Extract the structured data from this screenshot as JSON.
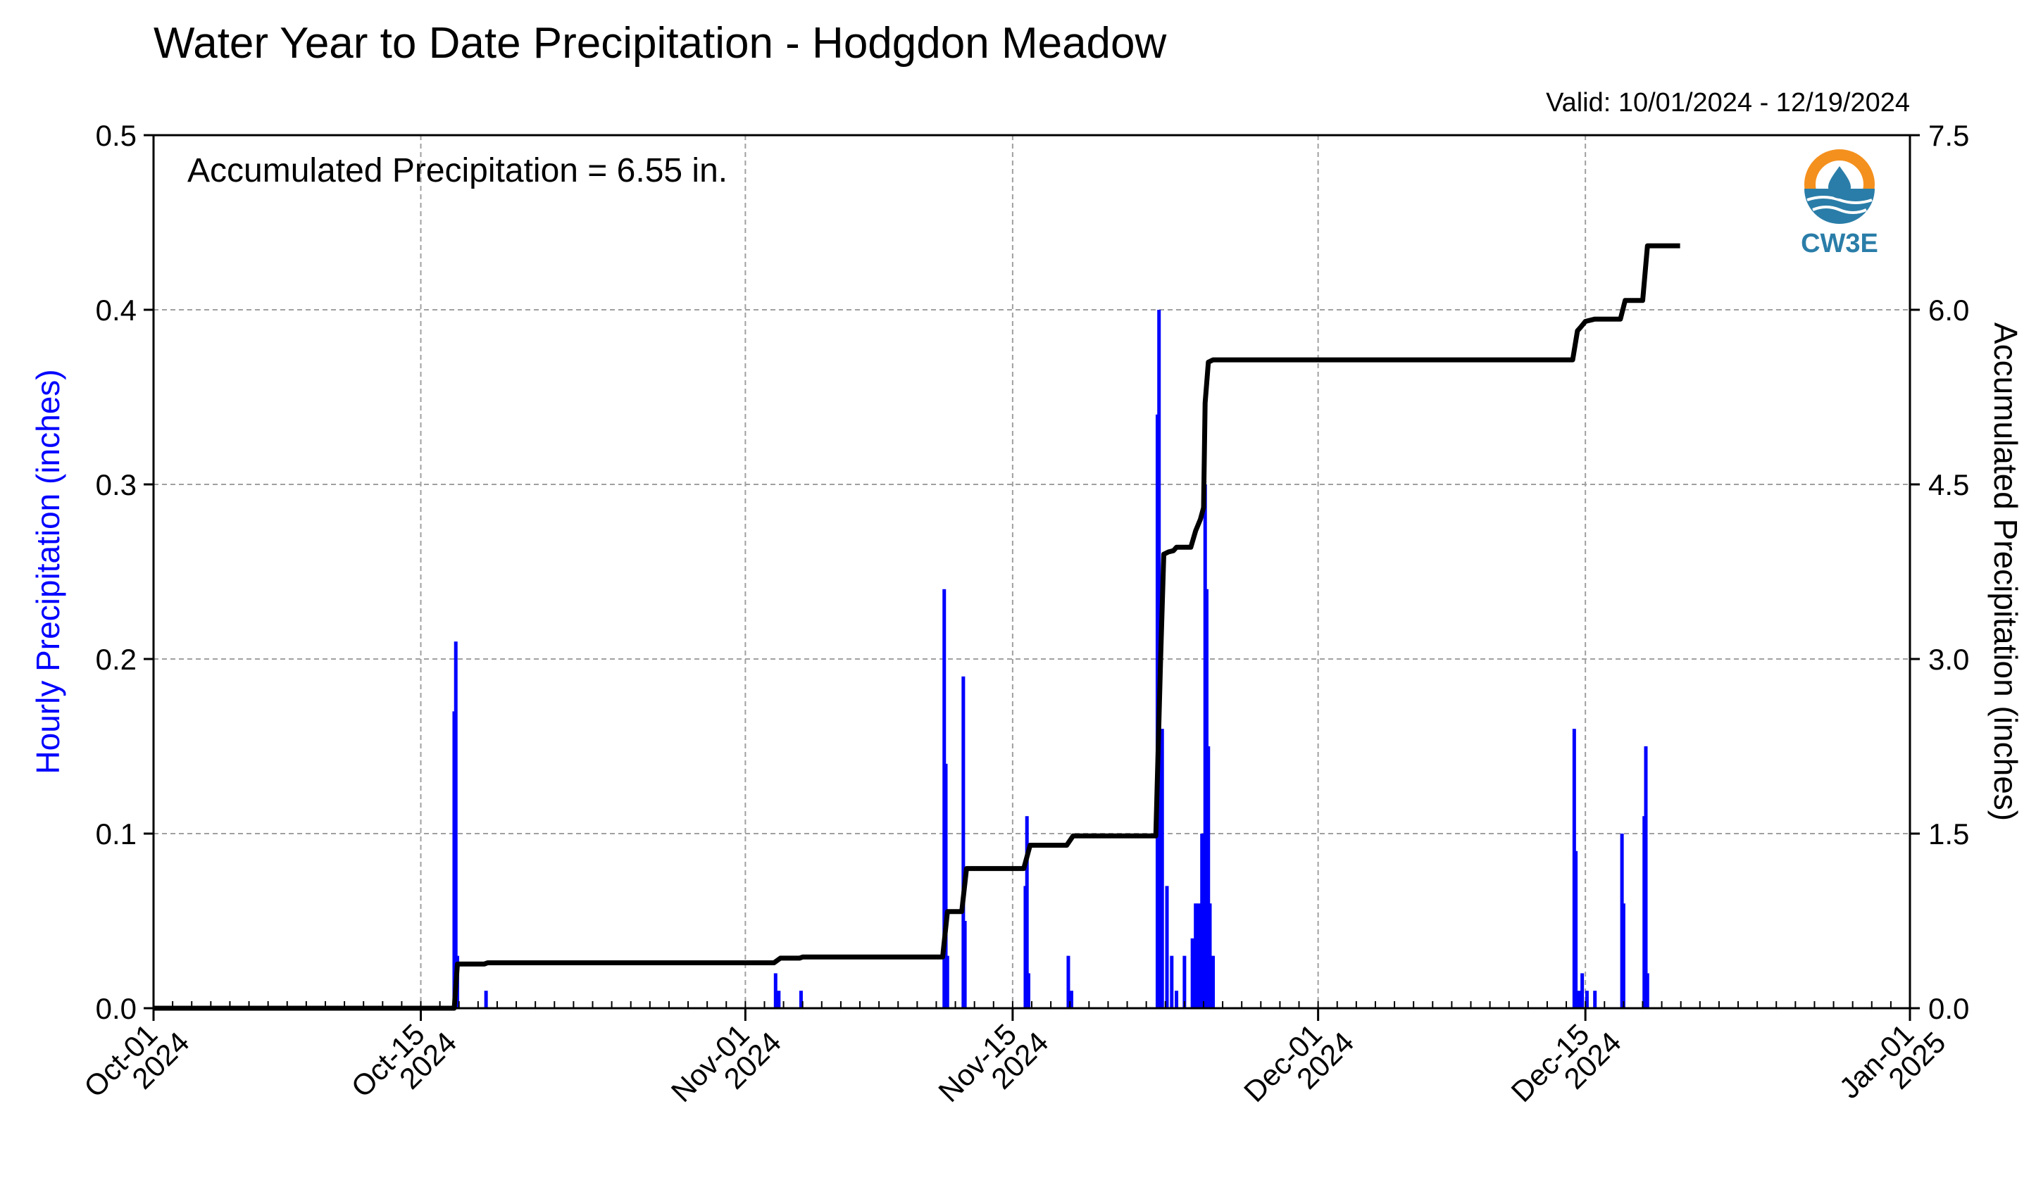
{
  "chart_data": {
    "type": "bar+line",
    "title": "Water Year to Date Precipitation - Hodgdon Meadow",
    "subtitle": "Valid: 10/01/2024 - 12/19/2024",
    "annotation": "Accumulated Precipitation = 6.55 in.",
    "logo_text": "CW3E",
    "x_axis": {
      "range": [
        "2024-10-01",
        "2025-01-01"
      ],
      "ticks": [
        {
          "date": "2024-10-01",
          "line1": "Oct-01",
          "line2": "2024"
        },
        {
          "date": "2024-10-15",
          "line1": "Oct-15",
          "line2": "2024"
        },
        {
          "date": "2024-11-01",
          "line1": "Nov-01",
          "line2": "2024"
        },
        {
          "date": "2024-11-15",
          "line1": "Nov-15",
          "line2": "2024"
        },
        {
          "date": "2024-12-01",
          "line1": "Dec-01",
          "line2": "2024"
        },
        {
          "date": "2024-12-15",
          "line1": "Dec-15",
          "line2": "2024"
        },
        {
          "date": "2025-01-01",
          "line1": "Jan-01",
          "line2": "2025"
        }
      ],
      "minor_ticks": "daily"
    },
    "y_left": {
      "label": "Hourly Precipitation (inches)",
      "color": "#0000ff",
      "range": [
        0,
        0.5
      ],
      "ticks": [
        "0.0",
        "0.1",
        "0.2",
        "0.3",
        "0.4",
        "0.5"
      ]
    },
    "y_right": {
      "label": "Accumulated Precipitation (inches)",
      "range": [
        0,
        7.5
      ],
      "ticks": [
        "0.0",
        "1.5",
        "3.0",
        "4.5",
        "6.0",
        "7.5"
      ]
    },
    "grid": true,
    "series": [
      {
        "type": "bar",
        "axis": "left",
        "color": "#0000ff",
        "x": [
          "2024-10-16T18:00",
          "2024-10-16T20:00",
          "2024-10-16T22:00",
          "2024-10-18T10:00",
          "2024-11-02T14:00",
          "2024-11-02T18:00",
          "2024-11-03T22:00",
          "2024-11-11T10:00",
          "2024-11-11T12:00",
          "2024-11-11T14:00",
          "2024-11-12T10:00",
          "2024-11-12T12:00",
          "2024-11-15T16:00",
          "2024-11-15T18:00",
          "2024-11-15T20:00",
          "2024-11-17T22:00",
          "2024-11-18T02:00",
          "2024-11-22T14:00",
          "2024-11-22T16:00",
          "2024-11-22T20:00",
          "2024-11-23T02:00",
          "2024-11-23T08:00",
          "2024-11-23T14:00",
          "2024-11-24T00:00",
          "2024-11-24T10:00",
          "2024-11-24T14:00",
          "2024-11-24T18:00",
          "2024-11-24T22:00",
          "2024-11-25T02:00",
          "2024-11-25T04:00",
          "2024-11-25T06:00",
          "2024-11-25T08:00",
          "2024-11-25T12:00",
          "2024-12-14T10:00",
          "2024-12-14T12:00",
          "2024-12-14T16:00",
          "2024-12-14T20:00",
          "2024-12-15T02:00",
          "2024-12-15T12:00",
          "2024-12-16T22:00",
          "2024-12-17T00:00",
          "2024-12-18T02:00",
          "2024-12-18T04:00",
          "2024-12-18T06:00"
        ],
        "values": [
          0.17,
          0.21,
          0.03,
          0.01,
          0.02,
          0.01,
          0.01,
          0.24,
          0.14,
          0.03,
          0.19,
          0.05,
          0.07,
          0.11,
          0.02,
          0.03,
          0.01,
          0.34,
          0.4,
          0.16,
          0.07,
          0.03,
          0.01,
          0.03,
          0.04,
          0.06,
          0.06,
          0.1,
          0.3,
          0.24,
          0.15,
          0.06,
          0.03,
          0.16,
          0.09,
          0.01,
          0.02,
          0.01,
          0.01,
          0.1,
          0.06,
          0.11,
          0.15,
          0.02
        ]
      },
      {
        "type": "line",
        "axis": "right",
        "color": "#000000",
        "x": [
          "2024-10-01T00:00",
          "2024-10-16T18:00",
          "2024-10-16T22:00",
          "2024-10-18T08:00",
          "2024-10-18T12:00",
          "2024-11-02T12:00",
          "2024-11-02T20:00",
          "2024-11-03T20:00",
          "2024-11-04T00:00",
          "2024-11-11T08:00",
          "2024-11-11T14:00",
          "2024-11-12T08:00",
          "2024-11-12T14:00",
          "2024-11-15T14:00",
          "2024-11-15T22:00",
          "2024-11-17T20:00",
          "2024-11-18T04:00",
          "2024-11-22T12:00",
          "2024-11-22T18:00",
          "2024-11-22T22:00",
          "2024-11-23T04:00",
          "2024-11-23T10:00",
          "2024-11-23T14:00",
          "2024-11-24T08:00",
          "2024-11-24T14:00",
          "2024-11-24T20:00",
          "2024-11-25T00:00",
          "2024-11-25T02:00",
          "2024-11-25T06:00",
          "2024-11-25T12:00",
          "2024-12-14T08:00",
          "2024-12-14T14:00",
          "2024-12-14T18:00",
          "2024-12-15T00:00",
          "2024-12-15T12:00",
          "2024-12-16T20:00",
          "2024-12-17T02:00",
          "2024-12-18T00:00",
          "2024-12-18T06:00",
          "2024-12-19T23:00"
        ],
        "values": [
          0.0,
          0.0,
          0.38,
          0.38,
          0.39,
          0.39,
          0.43,
          0.43,
          0.44,
          0.44,
          0.83,
          0.83,
          1.2,
          1.2,
          1.4,
          1.4,
          1.48,
          1.48,
          3.0,
          3.9,
          3.92,
          3.93,
          3.96,
          3.96,
          4.1,
          4.2,
          4.3,
          5.2,
          5.55,
          5.57,
          5.57,
          5.82,
          5.85,
          5.9,
          5.92,
          5.92,
          6.08,
          6.08,
          6.55,
          6.55
        ]
      }
    ]
  }
}
